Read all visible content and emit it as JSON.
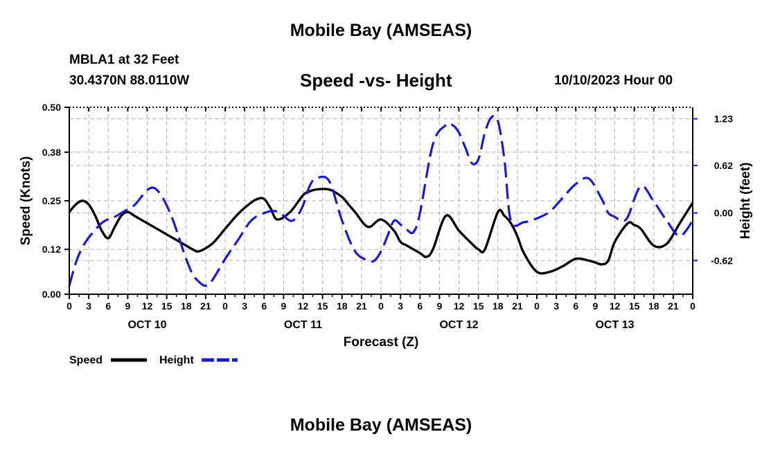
{
  "header": {
    "title": "Mobile Bay (AMSEAS)",
    "station": "MBLA1 at 32 Feet",
    "coords": "30.4370N  88.0110W",
    "plot_title": "Speed -vs- Height",
    "run_time": "10/10/2023 Hour 00"
  },
  "footer": {
    "title": "Mobile Bay (AMSEAS)"
  },
  "colors": {
    "speed": "#000000",
    "height": "#1a1acc",
    "grid": "#b0b0b0"
  },
  "chart_data": {
    "type": "line",
    "title": "Speed -vs- Height",
    "xlabel": "Forecast (Z)",
    "ylabel": "Speed (Knots)",
    "y2label": "Height (feet)",
    "xlim": [
      0,
      96
    ],
    "ylim": [
      0,
      0.5
    ],
    "y2lim": [
      -1.06,
      1.38
    ],
    "x_ticks": [
      0,
      3,
      6,
      9,
      12,
      15,
      18,
      21,
      24,
      27,
      30,
      33,
      36,
      39,
      42,
      45,
      48,
      51,
      54,
      57,
      60,
      63,
      66,
      69,
      72,
      75,
      78,
      81,
      84,
      87,
      90,
      93,
      96
    ],
    "x_tick_labels": [
      "0",
      "3",
      "6",
      "9",
      "12",
      "15",
      "18",
      "21",
      "0",
      "3",
      "6",
      "9",
      "12",
      "15",
      "18",
      "21",
      "0",
      "3",
      "6",
      "9",
      "12",
      "15",
      "18",
      "21",
      "0",
      "3",
      "6",
      "9",
      "12",
      "15",
      "18",
      "21",
      "0"
    ],
    "y_ticks": [
      0.0,
      0.12,
      0.25,
      0.38,
      0.5
    ],
    "y_tick_labels": [
      "0.00",
      "0.12",
      "0.25",
      "0.38",
      "0.50"
    ],
    "y2_ticks": [
      -0.62,
      0.0,
      0.62,
      1.23
    ],
    "y2_tick_labels": [
      "-0.62",
      "0.00",
      "0.62",
      "1.23"
    ],
    "day_labels": [
      {
        "x": 12,
        "label": "OCT 10"
      },
      {
        "x": 36,
        "label": "OCT 11"
      },
      {
        "x": 60,
        "label": "OCT 12"
      },
      {
        "x": 84,
        "label": "OCT 13"
      }
    ],
    "grid": true,
    "legend": {
      "position": "bottom-left"
    },
    "series": [
      {
        "name": "Speed",
        "axis": "left",
        "style": "solid",
        "x": [
          0,
          1,
          2,
          3,
          4,
          5,
          6,
          7,
          8,
          9,
          10,
          12,
          14,
          16,
          18,
          19,
          20,
          22,
          24,
          26,
          28,
          29,
          30,
          31,
          32,
          34,
          36,
          37,
          38,
          40,
          42,
          43,
          44,
          46,
          48,
          50,
          51,
          52,
          54,
          55,
          56,
          58,
          60,
          62,
          63,
          64,
          66,
          67,
          68,
          69,
          70,
          72,
          74,
          76,
          78,
          80,
          81,
          82,
          83,
          84,
          86,
          87,
          88,
          90,
          92,
          94,
          96
        ],
        "values": [
          0.22,
          0.24,
          0.25,
          0.24,
          0.21,
          0.17,
          0.15,
          0.18,
          0.21,
          0.22,
          0.21,
          0.19,
          0.17,
          0.15,
          0.13,
          0.12,
          0.115,
          0.135,
          0.175,
          0.215,
          0.245,
          0.255,
          0.255,
          0.23,
          0.2,
          0.22,
          0.265,
          0.275,
          0.28,
          0.28,
          0.26,
          0.24,
          0.22,
          0.18,
          0.2,
          0.17,
          0.14,
          0.13,
          0.11,
          0.1,
          0.12,
          0.21,
          0.17,
          0.135,
          0.12,
          0.12,
          0.22,
          0.21,
          0.19,
          0.155,
          0.11,
          0.06,
          0.06,
          0.075,
          0.095,
          0.09,
          0.085,
          0.08,
          0.09,
          0.14,
          0.19,
          0.185,
          0.175,
          0.13,
          0.135,
          0.19,
          0.245
        ]
      },
      {
        "name": "Height",
        "axis": "right",
        "style": "dashed",
        "x": [
          0,
          1,
          2,
          3,
          4,
          5,
          6,
          7,
          8,
          9,
          10,
          11,
          12,
          13,
          14,
          15,
          16,
          17,
          18,
          19,
          20,
          21,
          22,
          24,
          26,
          28,
          30,
          32,
          34,
          35,
          36,
          37,
          38,
          40,
          42,
          44,
          46,
          47,
          48,
          49,
          50,
          51,
          52,
          53,
          54,
          56,
          58,
          59,
          60,
          61,
          62,
          63,
          64,
          65,
          66,
          67,
          68,
          70,
          72,
          74,
          76,
          78,
          80,
          82,
          83,
          84,
          85,
          86,
          88,
          90,
          92,
          94,
          96
        ],
        "values": [
          -0.95,
          -0.65,
          -0.45,
          -0.32,
          -0.22,
          -0.13,
          -0.08,
          -0.05,
          0.0,
          0.05,
          0.1,
          0.2,
          0.3,
          0.33,
          0.25,
          0.1,
          -0.1,
          -0.35,
          -0.6,
          -0.8,
          -0.9,
          -0.95,
          -0.88,
          -0.6,
          -0.35,
          -0.1,
          0.0,
          0.02,
          -0.1,
          -0.05,
          0.1,
          0.35,
          0.45,
          0.42,
          -0.1,
          -0.5,
          -0.62,
          -0.62,
          -0.5,
          -0.3,
          -0.1,
          -0.15,
          -0.22,
          -0.25,
          0.0,
          0.9,
          1.15,
          1.15,
          1.05,
          0.85,
          0.65,
          0.7,
          1.05,
          1.25,
          1.2,
          0.7,
          -0.1,
          -0.12,
          -0.07,
          0.02,
          0.2,
          0.38,
          0.45,
          0.18,
          0.0,
          -0.05,
          -0.1,
          -0.05,
          0.35,
          0.15,
          -0.1,
          -0.3,
          -0.1
        ]
      }
    ]
  }
}
